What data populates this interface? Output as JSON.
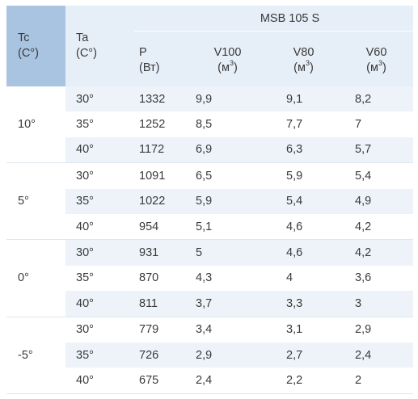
{
  "table": {
    "group_title": "MSB 105 S",
    "headers": {
      "tc": [
        "Tc",
        "(C°)"
      ],
      "ta": [
        "Ta",
        "(C°)"
      ],
      "p": [
        "P",
        "(Вт)"
      ],
      "v100": [
        "V100",
        "(м",
        "3",
        ")"
      ],
      "v80": [
        "V80",
        "(м",
        "3",
        ")"
      ],
      "v60": [
        "V60",
        "(м",
        "3",
        ")"
      ]
    },
    "groups": [
      {
        "tc": "10°",
        "rows": [
          {
            "ta": "30°",
            "p": "1332",
            "v100": "9,9",
            "v80": "9,1",
            "v60": "8,2"
          },
          {
            "ta": "35°",
            "p": "1252",
            "v100": "8,5",
            "v80": "7,7",
            "v60": "7"
          },
          {
            "ta": "40°",
            "p": "1172",
            "v100": "6,9",
            "v80": "6,3",
            "v60": "5,7"
          }
        ]
      },
      {
        "tc": "5°",
        "rows": [
          {
            "ta": "30°",
            "p": "1091",
            "v100": "6,5",
            "v80": "5,9",
            "v60": "5,4"
          },
          {
            "ta": "35°",
            "p": "1022",
            "v100": "5,9",
            "v80": "5,4",
            "v60": "4,9"
          },
          {
            "ta": "40°",
            "p": "954",
            "v100": "5,1",
            "v80": "4,6",
            "v60": "4,2"
          }
        ]
      },
      {
        "tc": "0°",
        "rows": [
          {
            "ta": "30°",
            "p": "931",
            "v100": "5",
            "v80": "4,6",
            "v60": "4,2"
          },
          {
            "ta": "35°",
            "p": "870",
            "v100": "4,3",
            "v80": "4",
            "v60": "3,6"
          },
          {
            "ta": "40°",
            "p": "811",
            "v100": "3,7",
            "v80": "3,3",
            "v60": "3"
          }
        ]
      },
      {
        "tc": "-5°",
        "rows": [
          {
            "ta": "30°",
            "p": "779",
            "v100": "3,4",
            "v80": "3,1",
            "v60": "2,9"
          },
          {
            "ta": "35°",
            "p": "726",
            "v100": "2,9",
            "v80": "2,7",
            "v60": "2,4"
          },
          {
            "ta": "40°",
            "p": "675",
            "v100": "2,4",
            "v80": "2,2",
            "v60": "2"
          }
        ]
      }
    ],
    "colors": {
      "tc_header_bg": "#a9c4e0",
      "header_bg": "#e6eef7",
      "stripe_bg": "#edf3f9",
      "text": "#3a3a3a"
    }
  }
}
